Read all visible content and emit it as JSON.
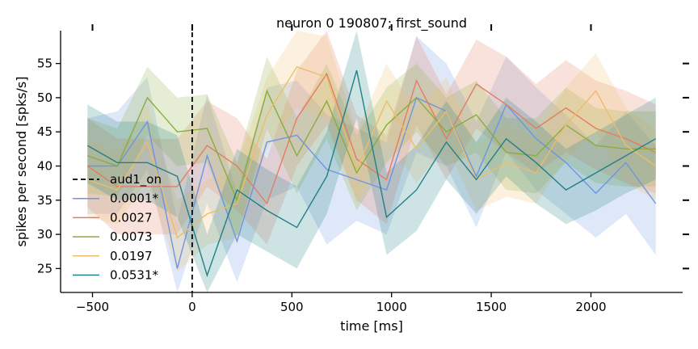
{
  "chart_data": {
    "type": "line",
    "title": "neuron 0 190807; first_sound",
    "xlabel": "time [ms]",
    "ylabel": "spikes per second [spks/s]",
    "xlim": [
      -660,
      2460
    ],
    "ylim": [
      21.5,
      59.8
    ],
    "xticks": [
      -500,
      0,
      500,
      1000,
      1500,
      2000
    ],
    "xtick_labels": [
      "−500",
      "0",
      "500",
      "1000",
      "1500",
      "2000"
    ],
    "yticks": [
      25,
      30,
      35,
      40,
      45,
      50,
      55
    ],
    "ytick_labels": [
      "25",
      "30",
      "35",
      "40",
      "45",
      "50",
      "55"
    ],
    "grid": false,
    "legend": "center-left",
    "marker_line": {
      "name": "aud1_on",
      "x": 0,
      "color": "#000000",
      "style": "dashed"
    },
    "x": [
      -525,
      -375,
      -225,
      -75,
      75,
      225,
      375,
      525,
      675,
      825,
      975,
      1125,
      1275,
      1425,
      1575,
      1725,
      1875,
      2025,
      2175,
      2325
    ],
    "series": [
      {
        "name": "0.0001*",
        "color": "#6e96e0",
        "values": [
          40.0,
          40.0,
          46.5,
          25.0,
          41.5,
          29.0,
          43.5,
          44.5,
          39.5,
          38.0,
          36.5,
          50.0,
          48.0,
          38.5,
          49.0,
          44.0,
          40.5,
          36.0,
          40.5,
          34.5
        ],
        "lower": [
          33.0,
          33.0,
          39.5,
          18.0,
          34.5,
          23.0,
          35.0,
          37.0,
          28.5,
          32.0,
          30.0,
          42.0,
          40.0,
          31.0,
          42.0,
          36.5,
          33.0,
          29.5,
          33.0,
          27.0
        ],
        "upper": [
          47.0,
          48.0,
          53.0,
          32.0,
          50.5,
          36.0,
          51.5,
          52.5,
          47.5,
          45.5,
          43.5,
          59.0,
          55.0,
          46.5,
          56.0,
          51.5,
          47.5,
          43.0,
          48.0,
          43.0
        ]
      },
      {
        "name": "0.0027",
        "color": "#e27d60",
        "values": [
          40.0,
          37.0,
          37.0,
          37.0,
          43.0,
          40.0,
          34.5,
          47.0,
          53.5,
          41.0,
          38.0,
          52.5,
          44.0,
          52.0,
          49.0,
          45.5,
          48.5,
          45.5,
          44.0,
          42.0
        ],
        "lower": [
          34.0,
          30.0,
          30.0,
          30.0,
          37.0,
          33.5,
          28.5,
          40.0,
          46.0,
          35.0,
          31.5,
          46.0,
          38.0,
          45.5,
          42.0,
          39.0,
          42.0,
          39.5,
          37.5,
          36.0
        ],
        "upper": [
          47.0,
          44.0,
          44.0,
          44.0,
          49.5,
          47.0,
          41.0,
          54.0,
          60.0,
          47.5,
          44.5,
          59.0,
          50.5,
          58.5,
          56.0,
          52.0,
          55.5,
          52.5,
          51.0,
          49.0
        ]
      },
      {
        "name": "0.0073",
        "color": "#8aac3c",
        "values": [
          41.5,
          40.0,
          50.0,
          45.0,
          45.5,
          35.0,
          51.0,
          41.5,
          49.5,
          39.0,
          46.0,
          50.0,
          45.0,
          47.5,
          42.0,
          41.5,
          46.0,
          43.0,
          42.5,
          42.5
        ],
        "lower": [
          36.0,
          35.5,
          44.5,
          40.0,
          40.5,
          29.5,
          45.5,
          36.0,
          44.0,
          33.5,
          40.5,
          45.0,
          40.0,
          42.0,
          36.5,
          36.0,
          40.5,
          37.5,
          37.0,
          37.0
        ],
        "upper": [
          47.0,
          45.5,
          54.5,
          50.0,
          50.5,
          40.5,
          56.0,
          47.0,
          55.0,
          44.5,
          51.5,
          55.0,
          50.0,
          52.5,
          47.0,
          47.0,
          51.5,
          48.5,
          48.0,
          48.0
        ]
      },
      {
        "name": "0.0197",
        "color": "#ebbd6b",
        "values": [
          38.0,
          36.5,
          43.5,
          29.5,
          33.0,
          34.5,
          47.5,
          54.5,
          53.0,
          39.5,
          49.5,
          42.5,
          48.0,
          38.0,
          40.5,
          39.0,
          46.0,
          51.0,
          43.0,
          40.0
        ],
        "lower": [
          32.5,
          31.5,
          38.0,
          24.5,
          28.5,
          29.5,
          42.5,
          48.5,
          47.0,
          34.5,
          44.0,
          37.5,
          43.0,
          33.5,
          35.5,
          34.5,
          41.0,
          45.0,
          37.5,
          35.0
        ],
        "upper": [
          44.0,
          42.0,
          49.0,
          35.0,
          38.0,
          40.0,
          53.0,
          60.0,
          59.0,
          45.0,
          55.0,
          48.0,
          53.0,
          43.0,
          46.0,
          44.0,
          51.5,
          56.5,
          48.5,
          45.5
        ]
      },
      {
        "name": "0.0531*",
        "color": "#227f86",
        "values": [
          43.0,
          40.5,
          40.5,
          38.5,
          24.0,
          36.5,
          33.5,
          31.0,
          38.5,
          54.0,
          32.5,
          36.5,
          43.5,
          38.0,
          44.0,
          40.5,
          36.5,
          39.0,
          41.5,
          44.0
        ],
        "lower": [
          37.5,
          35.0,
          35.0,
          32.5,
          18.5,
          30.0,
          27.5,
          25.0,
          33.0,
          47.0,
          27.0,
          30.5,
          38.0,
          33.0,
          38.5,
          34.5,
          31.5,
          33.5,
          36.0,
          38.0
        ],
        "upper": [
          49.0,
          46.5,
          46.5,
          44.5,
          30.0,
          42.5,
          39.5,
          37.0,
          45.0,
          61.0,
          39.0,
          43.0,
          49.5,
          43.5,
          50.0,
          46.5,
          42.5,
          45.0,
          47.5,
          50.0
        ]
      }
    ]
  }
}
